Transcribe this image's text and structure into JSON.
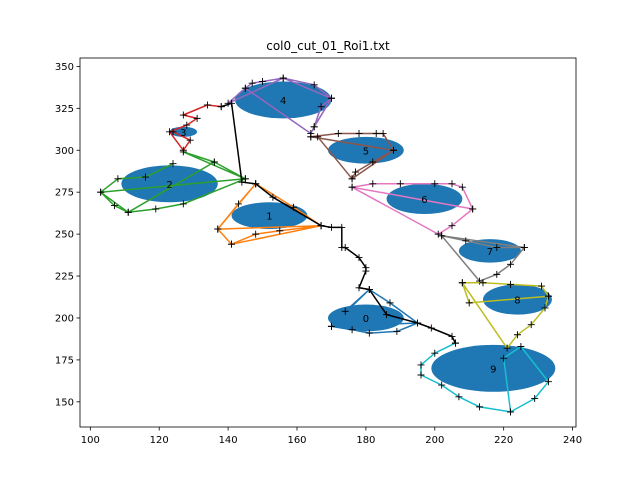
{
  "chart_data": {
    "type": "scatter",
    "title": "col0_cut_01_Roi1.txt",
    "xlabel": "",
    "ylabel": "",
    "xlim": [
      97,
      241
    ],
    "ylim": [
      135,
      355
    ],
    "xticks": [
      100,
      120,
      140,
      160,
      180,
      200,
      220,
      240
    ],
    "yticks": [
      150,
      175,
      200,
      225,
      250,
      275,
      300,
      325,
      350
    ],
    "grid": false,
    "legend": "none",
    "colors": {
      "ellipse_fill": "#1f77b4",
      "trajectory": "#000000",
      "c0": "#1f77b4",
      "c1": "#ff7f0e",
      "c2": "#2ca02c",
      "c3": "#d62728",
      "c4": "#9467bd",
      "c5": "#8c564b",
      "c6": "#e377c2",
      "c7": "#7f7f7f",
      "c8": "#bcbd22",
      "c9": "#17becf"
    },
    "ellipses": [
      {
        "label": "0",
        "cx": 180,
        "cy": 200,
        "rx": 11,
        "ry": 8
      },
      {
        "label": "1",
        "cx": 152,
        "cy": 261,
        "rx": 11,
        "ry": 8
      },
      {
        "label": "2",
        "cx": 123,
        "cy": 280,
        "rx": 14,
        "ry": 11
      },
      {
        "label": "3",
        "cx": 127,
        "cy": 311,
        "rx": 4,
        "ry": 3
      },
      {
        "label": "4",
        "cx": 156,
        "cy": 330,
        "rx": 14,
        "ry": 11
      },
      {
        "label": "5",
        "cx": 180,
        "cy": 300,
        "rx": 11,
        "ry": 8
      },
      {
        "label": "6",
        "cx": 197,
        "cy": 271,
        "rx": 11,
        "ry": 9
      },
      {
        "label": "7",
        "cx": 216,
        "cy": 240,
        "rx": 9,
        "ry": 7
      },
      {
        "label": "8",
        "cx": 224,
        "cy": 211,
        "rx": 10,
        "ry": 9
      },
      {
        "label": "9",
        "cx": 217,
        "cy": 170,
        "rx": 18,
        "ry": 14
      }
    ],
    "polygons": [
      {
        "color": "c0",
        "points": [
          [
            181,
            217
          ],
          [
            174,
            204
          ],
          [
            170,
            195
          ],
          [
            176,
            193
          ],
          [
            181,
            191
          ],
          [
            189,
            192
          ],
          [
            195,
            197
          ],
          [
            187,
            209
          ],
          [
            181,
            217
          ],
          [
            170,
            195
          ],
          [
            195,
            197
          ]
        ]
      },
      {
        "color": "c1",
        "points": [
          [
            148,
            280
          ],
          [
            143,
            268
          ],
          [
            137,
            253
          ],
          [
            141,
            244
          ],
          [
            148,
            250
          ],
          [
            155,
            252
          ],
          [
            167,
            255
          ],
          [
            159,
            266
          ],
          [
            148,
            280
          ],
          [
            137,
            253
          ],
          [
            167,
            255
          ],
          [
            141,
            244
          ]
        ]
      },
      {
        "color": "c2",
        "points": [
          [
            124,
            292
          ],
          [
            116,
            284
          ],
          [
            108,
            283
          ],
          [
            103,
            275
          ],
          [
            107,
            267
          ],
          [
            111,
            263
          ],
          [
            119,
            265
          ],
          [
            127,
            268
          ],
          [
            145,
            283
          ],
          [
            127,
            299
          ],
          [
            136,
            293
          ],
          [
            145,
            283
          ],
          [
            103,
            275
          ],
          [
            111,
            263
          ],
          [
            136,
            293
          ]
        ]
      },
      {
        "color": "c3",
        "points": [
          [
            124,
            311
          ],
          [
            129,
            306
          ],
          [
            127,
            300
          ],
          [
            123,
            311
          ],
          [
            128,
            315
          ],
          [
            131,
            319
          ],
          [
            127,
            321
          ],
          [
            134,
            327
          ],
          [
            138,
            326
          ]
        ]
      },
      {
        "color": "c4",
        "points": [
          [
            145,
            337
          ],
          [
            147,
            340
          ],
          [
            150,
            341
          ],
          [
            156,
            343
          ],
          [
            165,
            339
          ],
          [
            170,
            331
          ],
          [
            167,
            326
          ],
          [
            165,
            314
          ],
          [
            164,
            310
          ],
          [
            145,
            337
          ],
          [
            140,
            328
          ],
          [
            156,
            343
          ],
          [
            170,
            331
          ],
          [
            165,
            314
          ]
        ]
      },
      {
        "color": "c5",
        "points": [
          [
            164,
            308
          ],
          [
            172,
            310
          ],
          [
            178,
            310
          ],
          [
            183,
            310
          ],
          [
            185,
            310
          ],
          [
            188,
            300
          ],
          [
            182,
            293
          ],
          [
            177,
            287
          ],
          [
            176,
            283
          ],
          [
            166,
            308
          ],
          [
            164,
            308
          ],
          [
            188,
            300
          ],
          [
            176,
            283
          ]
        ]
      },
      {
        "color": "c6",
        "points": [
          [
            176,
            278
          ],
          [
            182,
            280
          ],
          [
            190,
            280
          ],
          [
            200,
            280
          ],
          [
            205,
            280
          ],
          [
            208,
            278
          ],
          [
            211,
            265
          ],
          [
            205,
            255
          ],
          [
            201,
            250
          ],
          [
            176,
            278
          ],
          [
            211,
            265
          ]
        ]
      },
      {
        "color": "c7",
        "points": [
          [
            202,
            249
          ],
          [
            209,
            246
          ],
          [
            218,
            242
          ],
          [
            226,
            242
          ],
          [
            222,
            232
          ],
          [
            218,
            226
          ],
          [
            213,
            222
          ],
          [
            202,
            249
          ],
          [
            226,
            242
          ]
        ]
      },
      {
        "color": "c8",
        "points": [
          [
            208,
            221
          ],
          [
            214,
            221
          ],
          [
            222,
            220
          ],
          [
            231,
            219
          ],
          [
            233,
            213
          ],
          [
            232,
            206
          ],
          [
            228,
            196
          ],
          [
            224,
            190
          ],
          [
            221,
            182
          ],
          [
            208,
            221
          ],
          [
            210,
            209
          ],
          [
            233,
            213
          ]
        ]
      },
      {
        "color": "c9",
        "points": [
          [
            206,
            185
          ],
          [
            200,
            179
          ],
          [
            196,
            172
          ],
          [
            196,
            166
          ],
          [
            202,
            160
          ],
          [
            207,
            153
          ],
          [
            213,
            147
          ],
          [
            222,
            144
          ],
          [
            229,
            152
          ],
          [
            233,
            162
          ],
          [
            225,
            183
          ],
          [
            220,
            176
          ],
          [
            222,
            144
          ]
        ]
      }
    ],
    "trajectory": [
      [
        138,
        326
      ],
      [
        141,
        328
      ],
      [
        144,
        281
      ],
      [
        148,
        280
      ],
      [
        153,
        272
      ],
      [
        167,
        255
      ],
      [
        170,
        254
      ],
      [
        173,
        254
      ],
      [
        173,
        242
      ],
      [
        174,
        242
      ],
      [
        178,
        236
      ],
      [
        180,
        230
      ],
      [
        180,
        228
      ],
      [
        178,
        218
      ],
      [
        181,
        217
      ],
      [
        186,
        202
      ],
      [
        195,
        197
      ],
      [
        199,
        194
      ],
      [
        205,
        189
      ],
      [
        206,
        185
      ]
    ]
  }
}
